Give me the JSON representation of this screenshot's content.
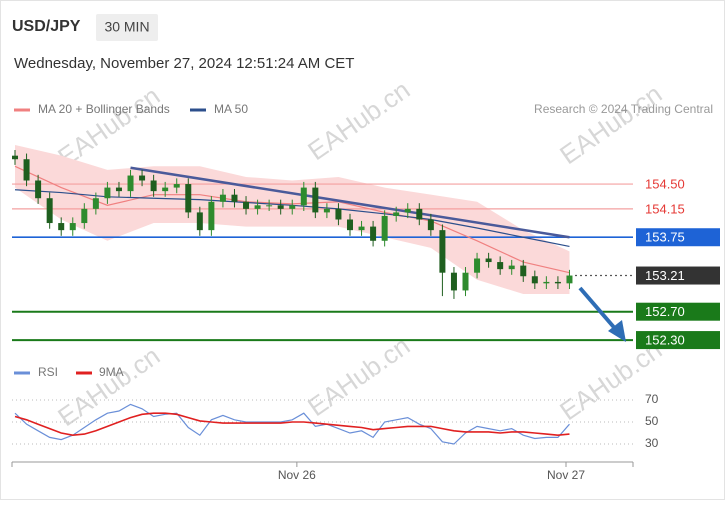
{
  "chart_data": {
    "type": "candlestick",
    "symbol": "USD/JPY",
    "timeframe": "30 MIN",
    "timestamp": "Wednesday, November 27, 2024 12:51:24 AM CET",
    "credit": "Research © 2024 Trading Central",
    "watermark": "EAHub.cn",
    "ylim": [
      152.16,
      154.98
    ],
    "xlim": [
      -0.26,
      53.5
    ],
    "xticks": [
      {
        "value": 24.4,
        "label": "Nov 26"
      },
      {
        "value": 47.7,
        "label": "Nov 27"
      }
    ],
    "candles": {
      "up_color": "#2e8b2e",
      "down_color": "#1f5f1f",
      "open": [
        154.9,
        154.85,
        154.55,
        154.3,
        153.95,
        153.85,
        153.95,
        154.15,
        154.3,
        154.45,
        154.4,
        154.62,
        154.55,
        154.4,
        154.45,
        154.5,
        154.1,
        153.85,
        154.25,
        154.35,
        154.25,
        154.15,
        154.2,
        154.2,
        154.15,
        154.2,
        154.45,
        154.1,
        154.15,
        154.0,
        153.85,
        153.9,
        153.7,
        154.05,
        154.1,
        154.15,
        154.0,
        153.85,
        153.25,
        153.0,
        153.25,
        153.45,
        153.4,
        153.3,
        153.35,
        153.2,
        153.1,
        153.12,
        153.1
      ],
      "high": [
        154.98,
        154.93,
        154.63,
        154.38,
        154.03,
        154.03,
        154.23,
        154.38,
        154.53,
        154.53,
        154.7,
        154.7,
        154.63,
        154.53,
        154.58,
        154.58,
        154.18,
        154.33,
        154.43,
        154.43,
        154.33,
        154.28,
        154.28,
        154.28,
        154.28,
        154.53,
        154.53,
        154.23,
        154.23,
        154.08,
        153.98,
        153.98,
        154.13,
        154.18,
        154.23,
        154.23,
        154.08,
        153.93,
        153.33,
        153.33,
        153.53,
        153.53,
        153.48,
        153.43,
        153.43,
        153.28,
        153.2,
        153.2,
        153.29
      ],
      "low": [
        154.77,
        154.47,
        154.22,
        153.87,
        153.77,
        153.77,
        153.87,
        154.07,
        154.22,
        154.32,
        154.32,
        154.47,
        154.32,
        154.32,
        154.37,
        154.02,
        153.77,
        153.77,
        154.17,
        154.17,
        154.07,
        154.07,
        154.12,
        154.07,
        154.07,
        154.12,
        154.02,
        154.02,
        153.92,
        153.77,
        153.77,
        153.62,
        153.62,
        153.97,
        154.02,
        153.92,
        153.77,
        152.92,
        152.88,
        152.92,
        153.17,
        153.32,
        153.22,
        153.22,
        153.12,
        153.02,
        153.02,
        153.02,
        153.02
      ],
      "close": [
        154.85,
        154.55,
        154.3,
        153.95,
        153.85,
        153.95,
        154.15,
        154.3,
        154.45,
        154.4,
        154.62,
        154.55,
        154.4,
        154.45,
        154.5,
        154.1,
        153.85,
        154.25,
        154.35,
        154.25,
        154.15,
        154.2,
        154.2,
        154.15,
        154.2,
        154.45,
        154.1,
        154.15,
        154.0,
        153.85,
        153.9,
        153.7,
        154.05,
        154.1,
        154.15,
        154.0,
        153.85,
        153.25,
        153.0,
        153.25,
        153.45,
        153.4,
        153.3,
        153.35,
        153.2,
        153.1,
        153.12,
        153.1,
        153.21
      ]
    },
    "indicators": {
      "x": [
        0,
        4,
        8,
        12,
        16,
        20,
        24,
        28,
        32,
        36,
        40,
        44,
        48
      ],
      "series": [
        {
          "name": "MA 20 + Bollinger Bands",
          "color": "#f08080",
          "band_color": "#fbd9d9",
          "values": [
            154.75,
            154.45,
            154.2,
            154.35,
            154.35,
            154.25,
            154.22,
            154.25,
            154.1,
            153.98,
            153.7,
            153.4,
            153.25
          ],
          "upper": [
            155.05,
            154.9,
            154.7,
            154.75,
            154.75,
            154.6,
            154.55,
            154.6,
            154.45,
            154.35,
            154.25,
            153.85,
            153.55
          ],
          "lower": [
            154.45,
            154.0,
            153.7,
            153.95,
            153.95,
            153.9,
            153.9,
            153.9,
            153.75,
            153.6,
            153.15,
            152.95,
            152.95
          ]
        },
        {
          "name": "MA 50",
          "color": "#2c4f8c",
          "values": [
            154.42,
            154.38,
            154.32,
            154.3,
            154.28,
            154.24,
            154.2,
            154.15,
            154.08,
            154.0,
            153.88,
            153.75,
            153.62
          ]
        }
      ]
    },
    "trendline": {
      "x": [
        10,
        48
      ],
      "values": [
        154.73,
        153.75
      ],
      "color": "#4a5a9a"
    },
    "levels": [
      {
        "value": 154.5,
        "label": "154.50",
        "color": "#f4a0a0",
        "text": "#e53935",
        "box": null,
        "dash": false
      },
      {
        "value": 154.15,
        "label": "154.15",
        "color": "#f4a0a0",
        "text": "#e53935",
        "box": null,
        "dash": false
      },
      {
        "value": 153.75,
        "label": "153.75",
        "color": "#1e63d6",
        "text": "#ffffff",
        "box": "#1e63d6",
        "dash": false
      },
      {
        "value": 153.21,
        "label": "153.21",
        "color": "#555555",
        "text": "#ffffff",
        "box": "#333333",
        "dash": true
      },
      {
        "value": 152.7,
        "label": "152.70",
        "color": "#1a7a1a",
        "text": "#ffffff",
        "box": "#1a7a1a",
        "dash": false
      },
      {
        "value": 152.3,
        "label": "152.30",
        "color": "#1a7a1a",
        "text": "#ffffff",
        "box": "#1a7a1a",
        "dash": false
      }
    ],
    "rsi": {
      "ylim": [
        20,
        80
      ],
      "yticks": [
        70,
        50,
        30
      ],
      "series": [
        {
          "name": "RSI",
          "color": "#6a8fd8",
          "values": [
            58,
            48,
            42,
            36,
            34,
            38,
            45,
            52,
            58,
            60,
            66,
            62,
            55,
            57,
            58,
            45,
            38,
            52,
            56,
            52,
            50,
            50,
            50,
            50,
            52,
            58,
            46,
            48,
            44,
            40,
            42,
            36,
            50,
            52,
            54,
            48,
            44,
            32,
            30,
            40,
            46,
            44,
            42,
            44,
            38,
            35,
            36,
            36,
            48
          ]
        },
        {
          "name": "9MA",
          "color": "#e02020",
          "values": [
            55,
            52,
            48,
            44,
            40,
            38,
            39,
            42,
            46,
            50,
            54,
            57,
            58,
            58,
            57,
            54,
            51,
            50,
            49,
            49,
            49,
            49,
            49,
            49,
            50,
            50,
            49,
            48,
            47,
            46,
            45,
            43,
            44,
            45,
            46,
            46,
            46,
            44,
            42,
            41,
            41,
            41,
            40,
            41,
            41,
            40,
            39,
            38,
            39
          ]
        }
      ]
    }
  }
}
